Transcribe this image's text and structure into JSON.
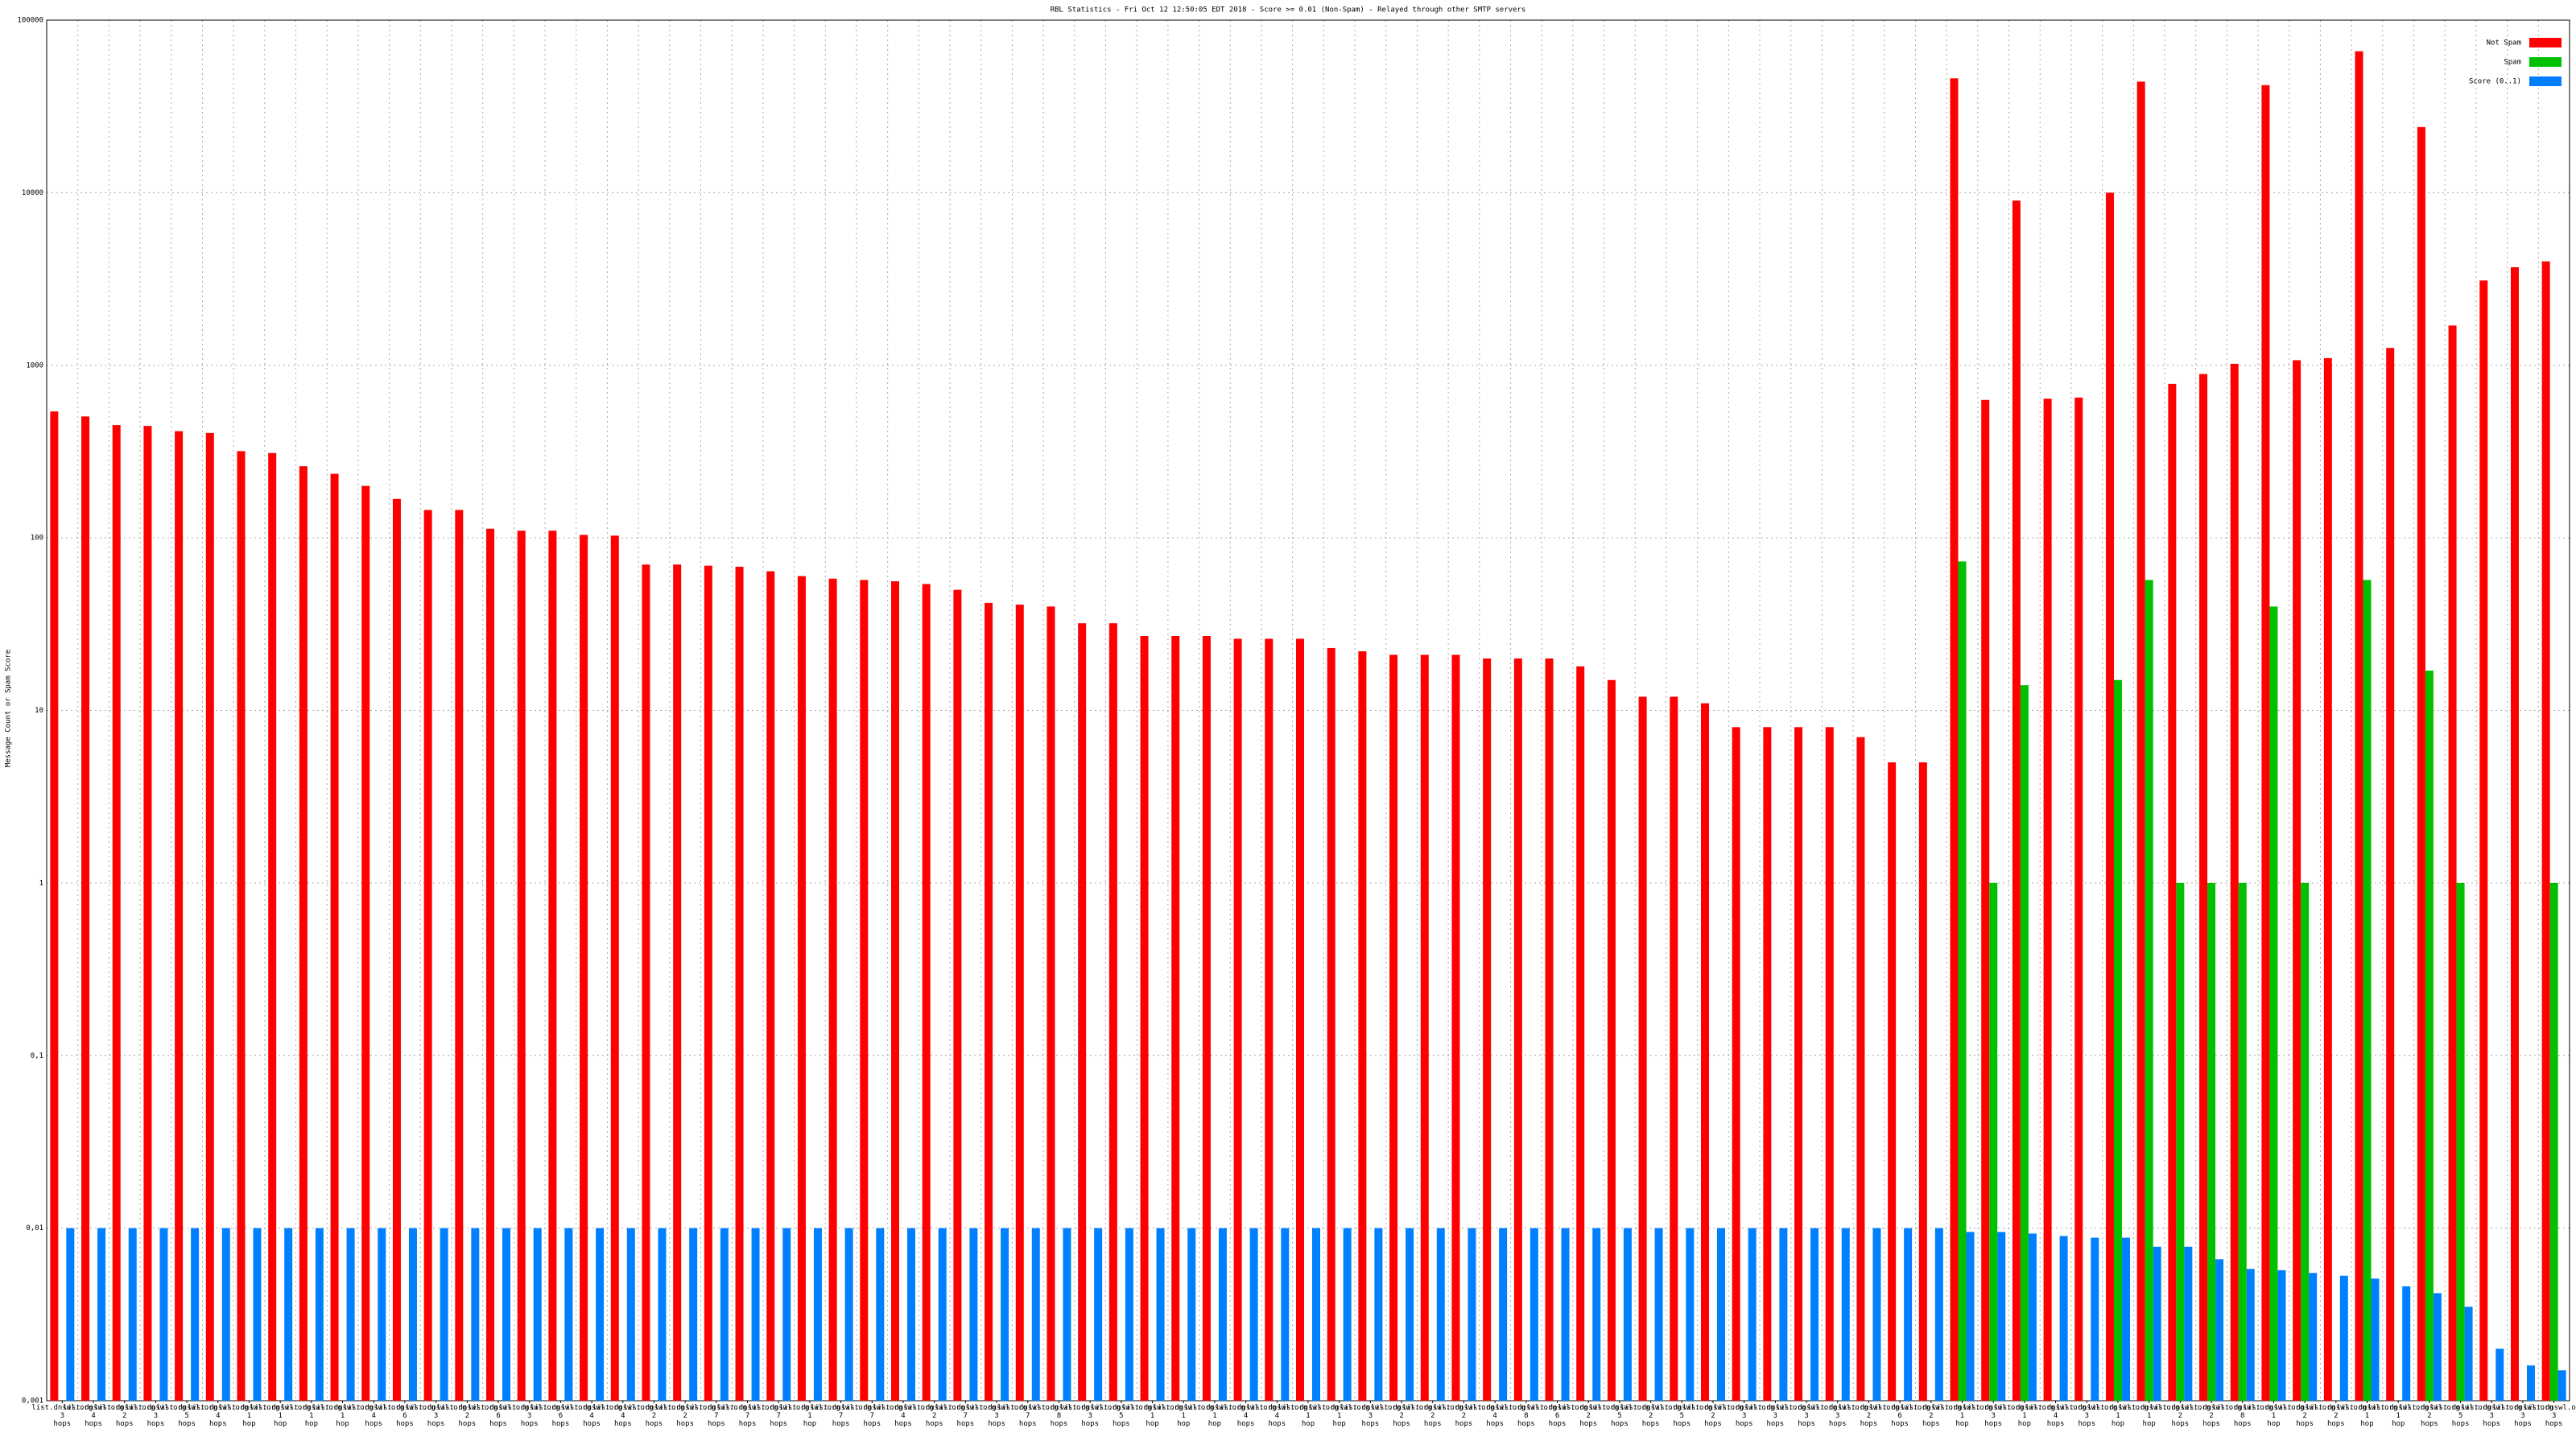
{
  "chart_data": {
    "type": "bar",
    "title": "RBL Statistics - Fri Oct 12 12:50:05 EDT 2018 - Score >= 0.01 (Non-Spam) - Relayed through other SMTP servers",
    "y_label": "Message Count or Spam Score",
    "log_scale": true,
    "grid": true,
    "legend": "top-right",
    "ylim": [
      0.001,
      100000
    ],
    "yticks": [
      {
        "value": 0.001,
        "label": "0,001"
      },
      {
        "value": 0.01,
        "label": "0,01"
      },
      {
        "value": 0.1,
        "label": "0,1"
      },
      1,
      10,
      100,
      1000,
      10000,
      100000
    ],
    "categories": [
      "list.dnswl.org 3 hops",
      "list.dnswl.org 4 hops",
      "list.dnswl.org 2 hops",
      "list.dnswl.org 3 hops",
      "list.dnswl.org 5 hops",
      "list.dnswl.org 4 hops",
      "list.dnswl.org 1 hop",
      "list.dnswl.org 1 hop",
      "list.dnswl.org 1 hop",
      "list.dnswl.org 1 hop",
      "list.dnswl.org 4 hops",
      "list.dnswl.org 6 hops",
      "list.dnswl.org 3 hops",
      "list.dnswl.org 2 hops",
      "list.dnswl.org 6 hops",
      "list.dnswl.org 3 hops",
      "list.dnswl.org 6 hops",
      "list.dnswl.org 4 hops",
      "list.dnswl.org 4 hops",
      "list.dnswl.org 2 hops",
      "list.dnswl.org 2 hops",
      "list.dnswl.org 7 hops",
      "list.dnswl.org 7 hops",
      "list.dnswl.org 7 hops",
      "list.dnswl.org 1 hop",
      "list.dnswl.org 7 hops",
      "list.dnswl.org 7 hops",
      "list.dnswl.org 4 hops",
      "list.dnswl.org 2 hops",
      "list.dnswl.org 7 hops",
      "list.dnswl.org 3 hops",
      "list.dnswl.org 7 hops",
      "list.dnswl.org 8 hops",
      "list.dnswl.org 3 hops",
      "list.dnswl.org 5 hops",
      "list.dnswl.org 1 hop",
      "list.dnswl.org 1 hop",
      "list.dnswl.org 1 hop",
      "list.dnswl.org 4 hops",
      "list.dnswl.org 4 hops",
      "list.dnswl.org 1 hop",
      "list.dnswl.org 1 hop",
      "list.dnswl.org 3 hops",
      "list.dnswl.org 2 hops",
      "list.dnswl.org 2 hops",
      "list.dnswl.org 2 hops",
      "list.dnswl.org 4 hops",
      "list.dnswl.org 8 hops",
      "list.dnswl.org 6 hops",
      "list.dnswl.org 2 hops",
      "list.dnswl.org 5 hops",
      "list.dnswl.org 2 hops",
      "list.dnswl.org 5 hops",
      "list.dnswl.org 2 hops",
      "list.dnswl.org 3 hops",
      "list.dnswl.org 3 hops",
      "list.dnswl.org 3 hops",
      "list.dnswl.org 3 hops",
      "list.dnswl.org 2 hops",
      "list.dnswl.org 6 hops",
      "list.dnswl.org 2 hops",
      "list.dnswl.org 1 hop",
      "list.dnswl.org 3 hops",
      "list.dnswl.org 1 hop",
      "list.dnswl.org 4 hops",
      "list.dnswl.org 3 hops",
      "list.dnswl.org 1 hop",
      "list.dnswl.org 1 hop",
      "list.dnswl.org 2 hops",
      "list.dnswl.org 2 hops",
      "list.dnswl.org 8 hops",
      "list.dnswl.org 1 hop",
      "list.dnswl.org 2 hops",
      "list.dnswl.org 2 hops",
      "list.dnswl.org 1 hop",
      "list.dnswl.org 1 hop",
      "list.dnswl.org 2 hops",
      "list.dnswl.org 5 hops",
      "list.dnswl.org 3 hops",
      "list.dnswl.org 3 hops",
      "list.dnswl.org 3 hops"
    ],
    "series": [
      {
        "name": "Not Spam",
        "color": "#ff0000",
        "values": [
          540,
          505,
          450,
          445,
          415,
          405,
          318,
          310,
          260,
          235,
          200,
          168,
          145,
          145,
          113,
          110,
          110,
          104,
          103,
          70,
          70,
          69,
          68,
          64,
          60,
          58,
          57,
          56,
          54,
          50,
          42,
          41,
          40,
          32,
          32,
          27,
          27,
          27,
          26,
          26,
          26,
          23,
          22,
          21,
          21,
          21,
          20,
          20,
          20,
          18,
          15,
          12,
          12,
          11,
          8,
          8,
          8,
          8,
          7,
          5,
          5,
          46000,
          630,
          9000,
          640,
          650,
          10000,
          44000,
          780,
          890,
          1020,
          42000,
          1070,
          1100,
          66000,
          1260,
          24000,
          1700,
          3100,
          3700,
          4000
        ]
      },
      {
        "name": "Spam",
        "color": "#00c000",
        "values": [
          null,
          null,
          null,
          null,
          null,
          null,
          null,
          null,
          null,
          null,
          null,
          null,
          null,
          null,
          null,
          null,
          null,
          null,
          null,
          null,
          null,
          null,
          null,
          null,
          null,
          null,
          null,
          null,
          null,
          null,
          null,
          null,
          null,
          null,
          null,
          null,
          null,
          null,
          null,
          null,
          null,
          null,
          null,
          null,
          null,
          null,
          null,
          null,
          null,
          null,
          null,
          null,
          null,
          null,
          null,
          null,
          null,
          null,
          null,
          null,
          null,
          73,
          1,
          14,
          null,
          null,
          15,
          57,
          1,
          1,
          1,
          40,
          1,
          null,
          57,
          null,
          17,
          1,
          null,
          null,
          1
        ]
      },
      {
        "name": "Score (0..1)",
        "color": "#0080ff",
        "values": [
          0.01,
          0.01,
          0.01,
          0.01,
          0.01,
          0.01,
          0.01,
          0.01,
          0.01,
          0.01,
          0.01,
          0.01,
          0.01,
          0.01,
          0.01,
          0.01,
          0.01,
          0.01,
          0.01,
          0.01,
          0.01,
          0.01,
          0.01,
          0.01,
          0.01,
          0.01,
          0.01,
          0.01,
          0.01,
          0.01,
          0.01,
          0.01,
          0.01,
          0.01,
          0.01,
          0.01,
          0.01,
          0.01,
          0.01,
          0.01,
          0.01,
          0.01,
          0.01,
          0.01,
          0.01,
          0.01,
          0.01,
          0.01,
          0.01,
          0.01,
          0.01,
          0.01,
          0.01,
          0.01,
          0.01,
          0.01,
          0.01,
          0.01,
          0.01,
          0.01,
          0.01,
          0.0095,
          0.0095,
          0.0093,
          0.009,
          0.0088,
          0.0088,
          0.0078,
          0.0078,
          0.0066,
          0.0058,
          0.0057,
          0.0055,
          0.0053,
          0.0051,
          0.0046,
          0.0042,
          0.0035,
          0.002,
          0.0016,
          0.0015
        ]
      }
    ]
  }
}
